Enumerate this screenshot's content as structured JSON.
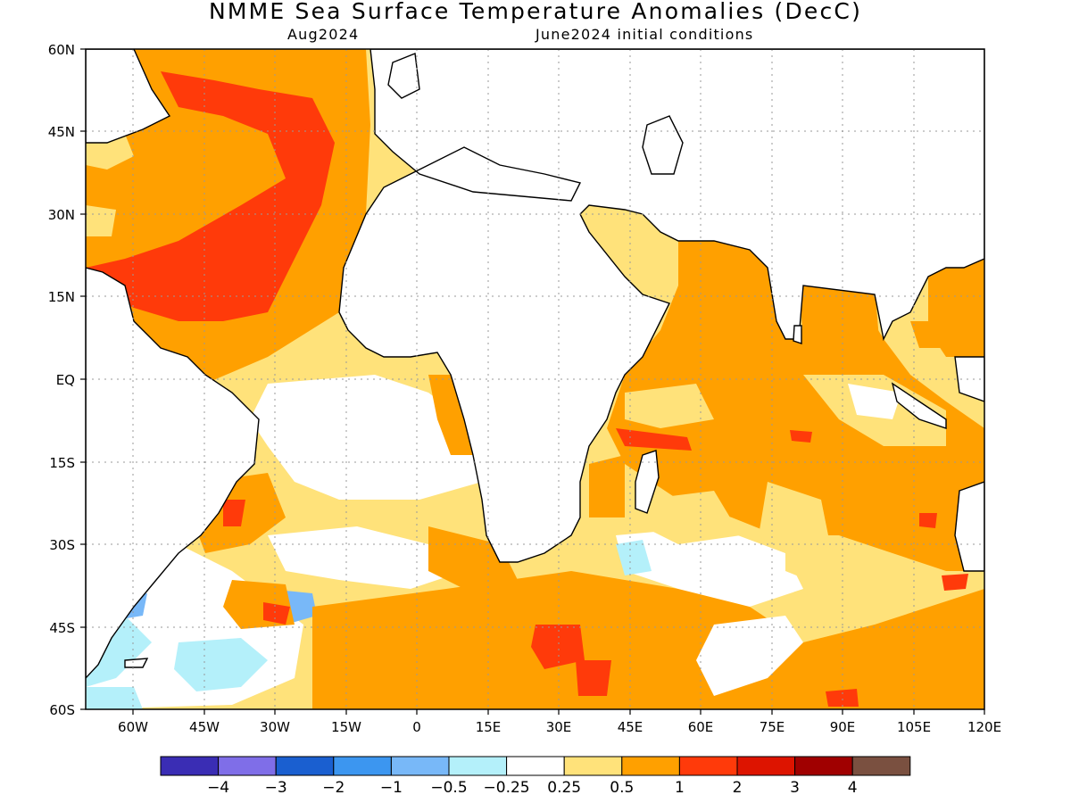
{
  "title": "NMME Sea Surface Temperature Anomalies (DecC)",
  "subtitle_left": "Aug2024",
  "subtitle_right": "June2024 initial conditions",
  "map": {
    "lat_range": [
      "60S",
      "60N"
    ],
    "lon_range": [
      "70W",
      "120E"
    ],
    "lat_labels": [
      "60N",
      "45N",
      "30N",
      "15N",
      "EQ",
      "15S",
      "30S",
      "45S",
      "60S"
    ],
    "lon_labels": [
      "60W",
      "45W",
      "30W",
      "15W",
      "0",
      "15E",
      "30E",
      "45E",
      "60E",
      "75E",
      "90E",
      "105E",
      "120E"
    ],
    "gridlines": true,
    "projection": "equirectangular"
  },
  "colorbar": {
    "colors": [
      "#3a2db4",
      "#7f6ee8",
      "#1a5fd0",
      "#3c96f0",
      "#78b8f8",
      "#b4f0fa",
      "#ffffff",
      "#ffe27a",
      "#ffa000",
      "#ff3a0a",
      "#dd1400",
      "#a00000",
      "#7a5040"
    ],
    "labels": [
      "−4",
      "−3",
      "−2",
      "−1",
      "−0.5",
      "−0.25",
      "0.25",
      "0.5",
      "1",
      "2",
      "3",
      "4"
    ]
  }
}
